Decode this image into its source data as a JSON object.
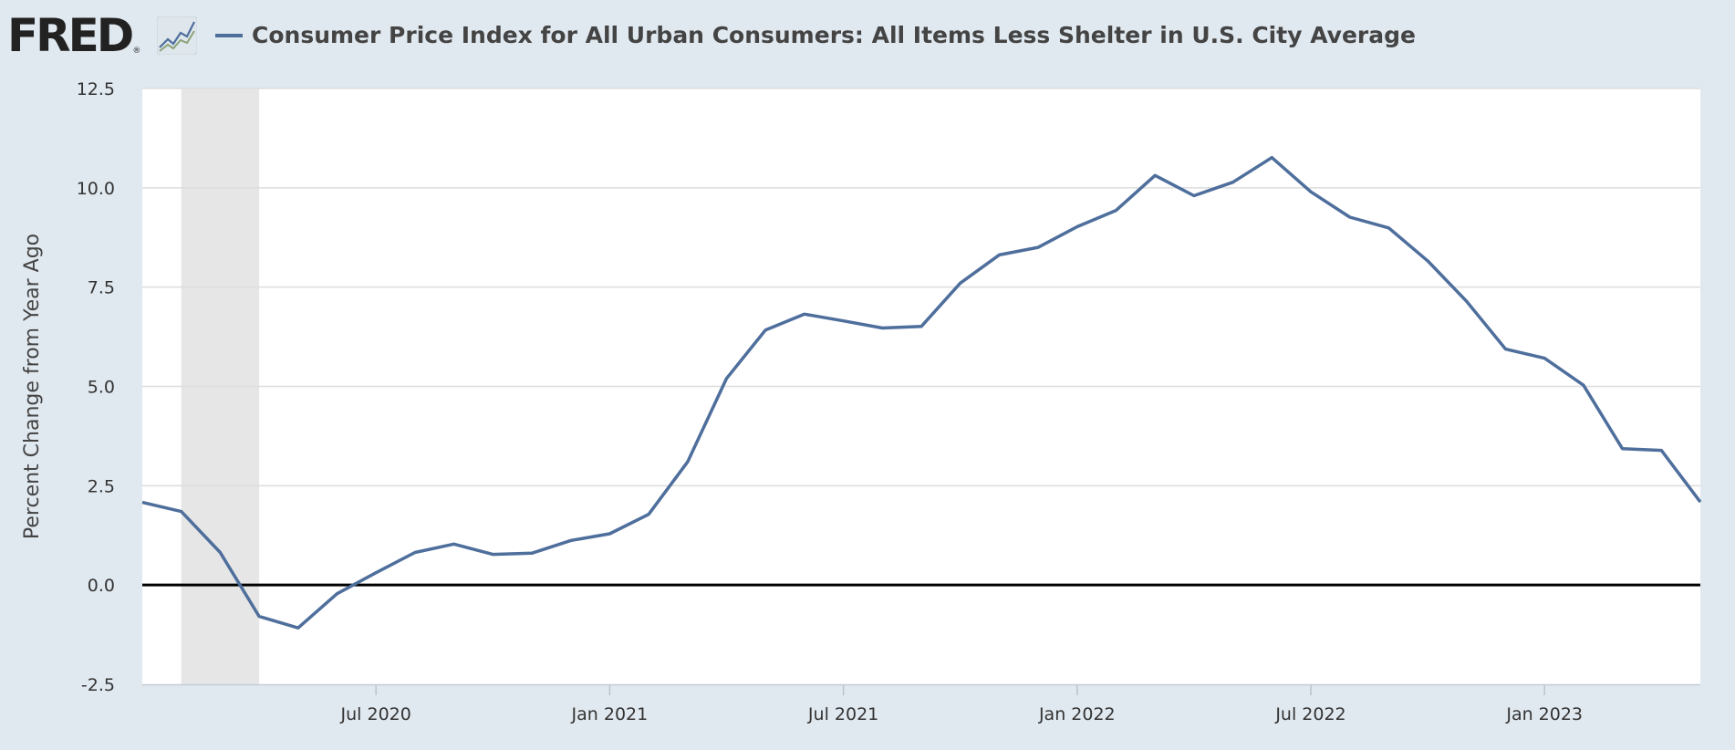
{
  "header": {
    "logo_text": "FRED",
    "logo_reg": "®",
    "title": "Consumer Price Index for All Urban Consumers: All Items Less Shelter in U.S. City Average"
  },
  "colors": {
    "series": "#4e6e9c",
    "background": "#e1e9f0",
    "plot_background": "#ffffff",
    "recession": "#e6e6e6",
    "gridline": "#dddddd",
    "zero_line": "#000000"
  },
  "chart_data": {
    "type": "line",
    "title": "Consumer Price Index for All Urban Consumers: All Items Less Shelter in U.S. City Average",
    "xlabel": "",
    "ylabel": "Percent Change from Year Ago",
    "ylim": [
      -2.5,
      12.5
    ],
    "xlim": [
      "2020-01-01",
      "2023-05-01"
    ],
    "yticks": [
      12.5,
      10.0,
      7.5,
      5.0,
      2.5,
      0.0,
      -2.5
    ],
    "ytick_labels": [
      "12.5",
      "10.0",
      "7.5",
      "5.0",
      "2.5",
      "0.0",
      "-2.5"
    ],
    "xticks": [
      "2020-07-01",
      "2021-01-01",
      "2021-07-01",
      "2022-01-01",
      "2022-07-01",
      "2023-01-01"
    ],
    "xtick_labels": [
      "Jul 2020",
      "Jan 2021",
      "Jul 2021",
      "Jan 2022",
      "Jul 2022",
      "Jan 2023"
    ],
    "grid": true,
    "legend": "top-left",
    "recession_shading": [
      {
        "start": "2020-02-01",
        "end": "2020-04-01"
      }
    ],
    "series": [
      {
        "name": "Consumer Price Index for All Urban Consumers: All Items Less Shelter in U.S. City Average",
        "x": [
          "2020-01-01",
          "2020-02-01",
          "2020-03-01",
          "2020-04-01",
          "2020-05-01",
          "2020-06-01",
          "2020-07-01",
          "2020-08-01",
          "2020-09-01",
          "2020-10-01",
          "2020-11-01",
          "2020-12-01",
          "2021-01-01",
          "2021-02-01",
          "2021-03-01",
          "2021-04-01",
          "2021-05-01",
          "2021-06-01",
          "2021-07-01",
          "2021-08-01",
          "2021-09-01",
          "2021-10-01",
          "2021-11-01",
          "2021-12-01",
          "2022-01-01",
          "2022-02-01",
          "2022-03-01",
          "2022-04-01",
          "2022-05-01",
          "2022-06-01",
          "2022-07-01",
          "2022-08-01",
          "2022-09-01",
          "2022-10-01",
          "2022-11-01",
          "2022-12-01",
          "2023-01-01",
          "2023-02-01",
          "2023-03-01",
          "2023-04-01",
          "2023-05-01"
        ],
        "values": [
          2.08,
          1.85,
          0.82,
          -0.79,
          -1.08,
          -0.22,
          0.31,
          0.82,
          1.03,
          0.77,
          0.8,
          1.12,
          1.29,
          1.78,
          3.1,
          5.2,
          6.42,
          6.82,
          6.65,
          6.47,
          6.51,
          7.6,
          8.31,
          8.5,
          9.02,
          9.43,
          10.31,
          9.8,
          10.14,
          10.76,
          9.9,
          9.26,
          8.99,
          8.16,
          7.14,
          5.94,
          5.71,
          5.03,
          3.43,
          3.39,
          2.09
        ]
      }
    ]
  }
}
